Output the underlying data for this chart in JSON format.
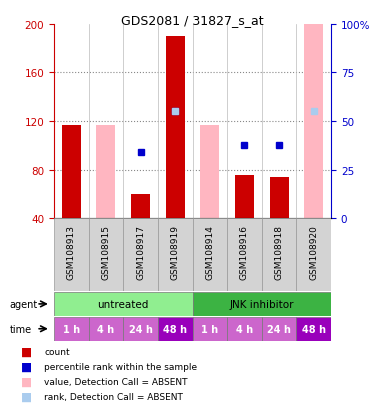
{
  "title": "GDS2081 / 31827_s_at",
  "samples": [
    "GSM108913",
    "GSM108915",
    "GSM108917",
    "GSM108919",
    "GSM108914",
    "GSM108916",
    "GSM108918",
    "GSM108920"
  ],
  "ylim_left": [
    40,
    200
  ],
  "ylim_right": [
    0,
    100
  ],
  "yticks_left": [
    40,
    80,
    120,
    160,
    200
  ],
  "yticks_right": [
    0,
    25,
    50,
    75,
    100
  ],
  "ytick_right_labels": [
    "0",
    "25",
    "50",
    "75",
    "100%"
  ],
  "grid_values": [
    80,
    120,
    160
  ],
  "count_values": [
    117,
    null,
    60,
    190,
    null,
    76,
    74,
    null
  ],
  "count_absent_values": [
    null,
    117,
    null,
    null,
    117,
    null,
    null,
    200
  ],
  "percentile_values": [
    null,
    null,
    95,
    128,
    null,
    100,
    100,
    null
  ],
  "percentile_absent_values": [
    null,
    null,
    null,
    128,
    null,
    null,
    null,
    128
  ],
  "agent_untreated_color": "#90EE90",
  "agent_jnk_color": "#3CB343",
  "time_normal_color": "#CC66CC",
  "time_dark_color": "#9900BB",
  "bar_width": 0.55,
  "count_color": "#CC0000",
  "count_absent_color": "#FFB6C1",
  "percentile_color": "#0000CC",
  "percentile_absent_color": "#AACCEE",
  "left_tick_color": "#CC0000",
  "right_tick_color": "#0000CC",
  "legend_labels": [
    "count",
    "percentile rank within the sample",
    "value, Detection Call = ABSENT",
    "rank, Detection Call = ABSENT"
  ]
}
